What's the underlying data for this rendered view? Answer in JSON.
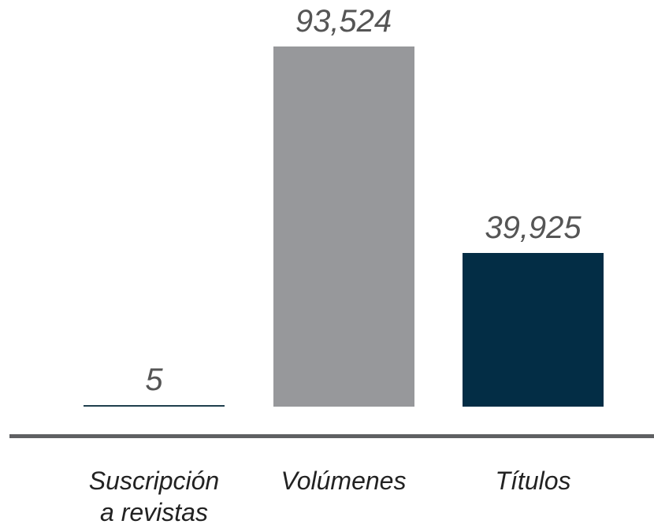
{
  "chart_data": {
    "type": "bar",
    "categories": [
      "Suscripción a revistas",
      "Volúmenes",
      "Títulos"
    ],
    "values": [
      5,
      93524,
      39925
    ],
    "value_labels": [
      "5",
      "93,524",
      "39,925"
    ],
    "colors": [
      "#1f3f4e",
      "#97989b",
      "#032d45"
    ]
  }
}
